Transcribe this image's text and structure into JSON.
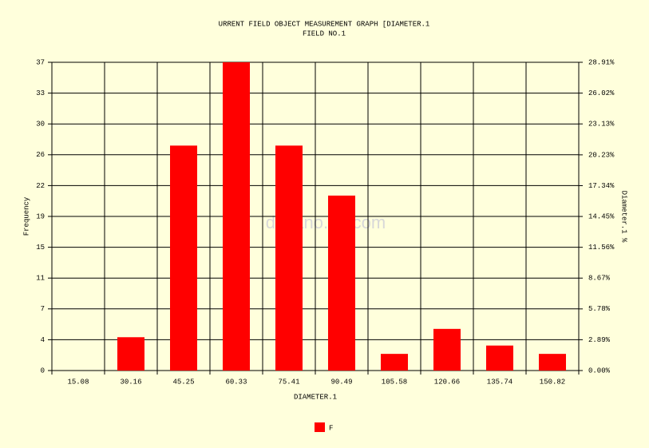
{
  "chart_data": {
    "type": "bar",
    "title": "URRENT FIELD OBJECT MEASUREMENT GRAPH [DIAMETER.1",
    "subtitle": "FIELD NO.1",
    "x_label": "DIAMETER.1",
    "y_label": "Frequency",
    "y2_label": "Diameter.1 %",
    "watermark": "dynano.en.com",
    "categories": [
      "15.08",
      "30.16",
      "45.25",
      "60.33",
      "75.41",
      "90.49",
      "105.58",
      "120.66",
      "135.74",
      "150.82"
    ],
    "series": [
      {
        "name": "F",
        "color": "#ff0000",
        "values": [
          0,
          4,
          27,
          37,
          27,
          21,
          2,
          5,
          3,
          2
        ]
      }
    ],
    "ylim": [
      0,
      37
    ],
    "yticks": [
      0,
      {
        "value": 3.7,
        "label": "4"
      },
      {
        "value": 7.4,
        "label": "7"
      },
      {
        "value": 11.1,
        "label": "11"
      },
      {
        "value": 14.8,
        "label": "15"
      },
      {
        "value": 18.5,
        "label": "19"
      },
      {
        "value": 22.2,
        "label": "22"
      },
      {
        "value": 25.9,
        "label": "26"
      },
      {
        "value": 29.6,
        "label": "30"
      },
      {
        "value": 33.3,
        "label": "33"
      },
      37
    ],
    "y2lim": [
      0,
      28.91
    ],
    "y2ticks": [
      {
        "value": 0,
        "label": "0.00%"
      },
      {
        "value": 2.89,
        "label": "2.89%"
      },
      {
        "value": 5.78,
        "label": "5.78%"
      },
      {
        "value": 8.67,
        "label": "8.67%"
      },
      {
        "value": 11.56,
        "label": "11.56%"
      },
      {
        "value": 14.45,
        "label": "14.45%"
      },
      {
        "value": 17.34,
        "label": "17.34%"
      },
      {
        "value": 20.23,
        "label": "20.23%"
      },
      {
        "value": 23.13,
        "label": "23.13%"
      },
      {
        "value": 26.02,
        "label": "26.02%"
      },
      {
        "value": 28.91,
        "label": "28.91%"
      }
    ],
    "grid": true,
    "background": "#ffffdc"
  }
}
